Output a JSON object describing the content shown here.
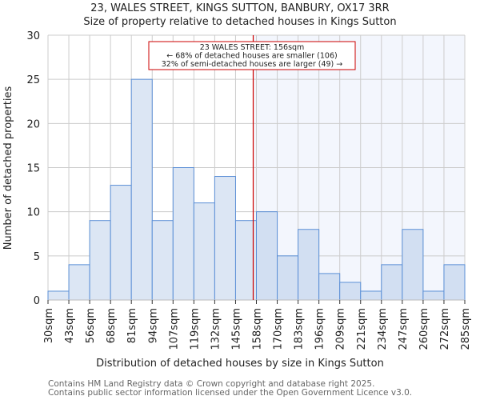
{
  "chart_data": {
    "type": "bar",
    "title": "23, WALES STREET, KINGS SUTTON, BANBURY, OX17 3RR",
    "subtitle": "Size of property relative to detached houses in Kings Sutton",
    "xlabel": "Distribution of detached houses by size in Kings Sutton",
    "ylabel": "Number of detached properties",
    "ylim": [
      0,
      30
    ],
    "yticks": [
      0,
      5,
      10,
      15,
      20,
      25,
      30
    ],
    "bin_edges": [
      "30sqm",
      "43sqm",
      "56sqm",
      "68sqm",
      "81sqm",
      "94sqm",
      "107sqm",
      "119sqm",
      "132sqm",
      "145sqm",
      "158sqm",
      "170sqm",
      "183sqm",
      "196sqm",
      "209sqm",
      "221sqm",
      "234sqm",
      "247sqm",
      "260sqm",
      "272sqm",
      "285sqm"
    ],
    "bin_edge_values": [
      30,
      43,
      56,
      68,
      81,
      94,
      107,
      119,
      132,
      145,
      158,
      170,
      183,
      196,
      209,
      221,
      234,
      247,
      260,
      272,
      285
    ],
    "values": [
      1,
      4,
      9,
      13,
      25,
      9,
      15,
      11,
      14,
      9,
      10,
      5,
      8,
      3,
      2,
      1,
      4,
      8,
      1,
      4
    ],
    "grid": true,
    "marker": {
      "value": 156,
      "color": "#cc0000",
      "annotation": [
        "23 WALES STREET: 156sqm",
        "← 68% of detached houses are smaller (106)",
        "32% of semi-detached houses are larger (49) →"
      ]
    },
    "colors": {
      "bar": "#dce6f4",
      "bar_highlight": "#d2dff2",
      "edge": "#5b8fd6",
      "highlight_bg": "#f3f6fd"
    }
  },
  "footer": {
    "line1": "Contains HM Land Registry data © Crown copyright and database right 2025.",
    "line2": "Contains public sector information licensed under the Open Government Licence v3.0."
  }
}
